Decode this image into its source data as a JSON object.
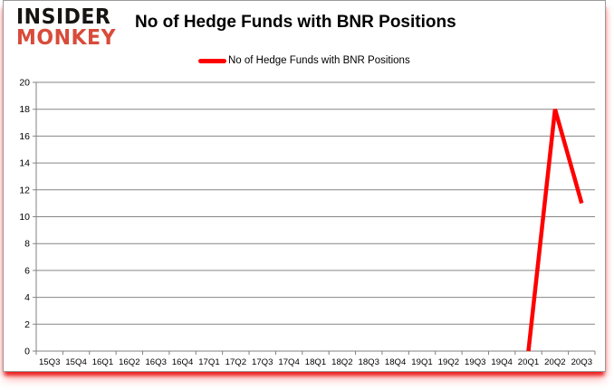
{
  "logo": {
    "line1": "INSIDER",
    "line2": "MONKEY"
  },
  "header": {
    "title": "No of Hedge Funds with BNR Positions"
  },
  "legend": {
    "label": "No of Hedge Funds with BNR Positions",
    "swatch_color": "#ff0000"
  },
  "colors": {
    "line": "#ff0000",
    "gridline": "#868686",
    "axis": "#808080",
    "text": "#000000",
    "logo_red": "#d94b3a",
    "glow_red": "#e81c1c"
  },
  "chart_data": {
    "type": "line",
    "title": "No of Hedge Funds with BNR Positions",
    "categories": [
      "15Q3",
      "15Q4",
      "16Q1",
      "16Q2",
      "16Q3",
      "16Q4",
      "17Q1",
      "17Q2",
      "17Q3",
      "17Q4",
      "18Q1",
      "18Q2",
      "18Q3",
      "18Q4",
      "19Q1",
      "19Q2",
      "19Q3",
      "19Q4",
      "20Q1",
      "20Q2",
      "20Q3"
    ],
    "series": [
      {
        "name": "No of Hedge Funds with BNR Positions",
        "color": "#ff0000",
        "values": [
          null,
          null,
          null,
          null,
          null,
          null,
          null,
          null,
          null,
          null,
          null,
          null,
          null,
          null,
          null,
          null,
          null,
          null,
          0,
          18,
          11
        ]
      }
    ],
    "xlabel": "",
    "ylabel": "",
    "ylim": [
      0,
      20
    ],
    "ytick_step": 2,
    "yticks": [
      0,
      2,
      4,
      6,
      8,
      10,
      12,
      14,
      16,
      18,
      20
    ],
    "grid": true,
    "legend_position": "top"
  }
}
